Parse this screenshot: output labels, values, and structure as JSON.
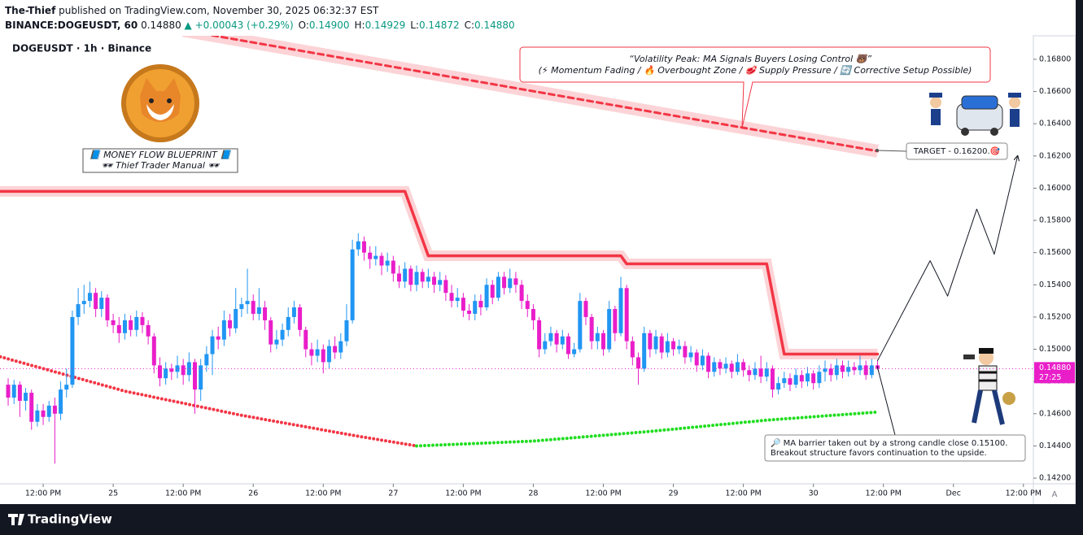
{
  "header": {
    "author": "The-Thief",
    "published": "published on TradingView.com, November 30, 2025 06:32:37 EST",
    "symbol": "BINANCE:DOGEUSDT, 60",
    "last": "0.14880",
    "change": "▲ +0.00043 (+0.29%)",
    "ohlc": [
      {
        "key": "O:",
        "val": "0.14900"
      },
      {
        "key": "H:",
        "val": "0.14929"
      },
      {
        "key": "L:",
        "val": "0.14872"
      },
      {
        "key": "C:",
        "val": "0.14880"
      }
    ]
  },
  "chart_data": {
    "type": "candlestick",
    "title": "DOGEUSDT · 1h · Binance",
    "up_color": "#2196f3",
    "down_color": "#e91ec9",
    "grid": false,
    "xlim": [
      -1.4,
      175.7
    ],
    "ylim": [
      0.14165,
      0.16946
    ],
    "xticks": [
      {
        "value": 6,
        "label": "12:00 PM"
      },
      {
        "value": 18,
        "label": "25"
      },
      {
        "value": 30,
        "label": "12:00 PM"
      },
      {
        "value": 42,
        "label": "26"
      },
      {
        "value": 54,
        "label": "12:00 PM"
      },
      {
        "value": 66,
        "label": "27"
      },
      {
        "value": 78,
        "label": "12:00 PM"
      },
      {
        "value": 90,
        "label": "28"
      },
      {
        "value": 102,
        "label": "12:00 PM"
      },
      {
        "value": 114,
        "label": "29"
      },
      {
        "value": 126,
        "label": "12:00 PM"
      },
      {
        "value": 138,
        "label": "30"
      },
      {
        "value": 150,
        "label": "12:00 PM"
      },
      {
        "value": 162,
        "label": "Dec"
      },
      {
        "value": 174,
        "label": "12:00 PM"
      }
    ],
    "yticks": [
      {
        "value": 0.142,
        "label": "0.14200"
      },
      {
        "value": 0.144,
        "label": "0.14400"
      },
      {
        "value": 0.146,
        "label": "0.14600"
      },
      {
        "value": 0.148,
        "label": "0.14800"
      },
      {
        "value": 0.15,
        "label": "0.15000"
      },
      {
        "value": 0.152,
        "label": "0.15200"
      },
      {
        "value": 0.154,
        "label": "0.15400"
      },
      {
        "value": 0.156,
        "label": "0.15600"
      },
      {
        "value": 0.158,
        "label": "0.15800"
      },
      {
        "value": 0.16,
        "label": "0.16000"
      },
      {
        "value": 0.162,
        "label": "0.16200"
      },
      {
        "value": 0.164,
        "label": "0.16400"
      },
      {
        "value": 0.166,
        "label": "0.16600"
      },
      {
        "value": 0.168,
        "label": "0.16800"
      }
    ],
    "ohlc": [
      [
        0.1478,
        0.1482,
        0.1465,
        0.147
      ],
      [
        0.147,
        0.1481,
        0.1466,
        0.1478
      ],
      [
        0.1478,
        0.148,
        0.1458,
        0.1468
      ],
      [
        0.1468,
        0.1476,
        0.1462,
        0.1473
      ],
      [
        0.1473,
        0.1475,
        0.145,
        0.1455
      ],
      [
        0.1455,
        0.1466,
        0.1452,
        0.1462
      ],
      [
        0.1462,
        0.1466,
        0.1453,
        0.1458
      ],
      [
        0.1458,
        0.1468,
        0.1455,
        0.1465
      ],
      [
        0.1465,
        0.147,
        0.1429,
        0.146
      ],
      [
        0.146,
        0.148,
        0.1456,
        0.1475
      ],
      [
        0.1475,
        0.1488,
        0.147,
        0.1478
      ],
      [
        0.1478,
        0.1524,
        0.1476,
        0.152
      ],
      [
        0.152,
        0.1538,
        0.1515,
        0.1528
      ],
      [
        0.1528,
        0.154,
        0.1522,
        0.153
      ],
      [
        0.153,
        0.1542,
        0.1526,
        0.1535
      ],
      [
        0.1535,
        0.1538,
        0.152,
        0.1525
      ],
      [
        0.1525,
        0.1536,
        0.152,
        0.1532
      ],
      [
        0.1532,
        0.1534,
        0.1514,
        0.1518
      ],
      [
        0.1518,
        0.1522,
        0.151,
        0.1515
      ],
      [
        0.1515,
        0.152,
        0.1504,
        0.151
      ],
      [
        0.151,
        0.1522,
        0.1506,
        0.1518
      ],
      [
        0.1518,
        0.1521,
        0.1508,
        0.1512
      ],
      [
        0.1512,
        0.1524,
        0.1508,
        0.152
      ],
      [
        0.152,
        0.1523,
        0.151,
        0.1515
      ],
      [
        0.1515,
        0.1518,
        0.1503,
        0.1508
      ],
      [
        0.1508,
        0.151,
        0.1485,
        0.149
      ],
      [
        0.149,
        0.1495,
        0.1477,
        0.1482
      ],
      [
        0.1482,
        0.1492,
        0.1478,
        0.1488
      ],
      [
        0.1488,
        0.1491,
        0.1481,
        0.1486
      ],
      [
        0.1486,
        0.1496,
        0.1482,
        0.149
      ],
      [
        0.149,
        0.1494,
        0.1478,
        0.1484
      ],
      [
        0.1484,
        0.1498,
        0.148,
        0.1492
      ],
      [
        0.1492,
        0.1494,
        0.146,
        0.1475
      ],
      [
        0.1475,
        0.1494,
        0.1468,
        0.149
      ],
      [
        0.149,
        0.1502,
        0.1486,
        0.1497
      ],
      [
        0.1497,
        0.1512,
        0.1484,
        0.1508
      ],
      [
        0.1508,
        0.1514,
        0.15,
        0.1506
      ],
      [
        0.1506,
        0.1524,
        0.1502,
        0.1518
      ],
      [
        0.1518,
        0.1522,
        0.1508,
        0.1513
      ],
      [
        0.1513,
        0.1538,
        0.151,
        0.1525
      ],
      [
        0.1525,
        0.1532,
        0.152,
        0.1528
      ],
      [
        0.1528,
        0.155,
        0.1522,
        0.153
      ],
      [
        0.153,
        0.1534,
        0.1518,
        0.1522
      ],
      [
        0.1522,
        0.1538,
        0.1518,
        0.1526
      ],
      [
        0.1526,
        0.153,
        0.1512,
        0.1518
      ],
      [
        0.1518,
        0.152,
        0.1498,
        0.1503
      ],
      [
        0.1503,
        0.1512,
        0.15,
        0.1506
      ],
      [
        0.1506,
        0.1516,
        0.1502,
        0.1512
      ],
      [
        0.1512,
        0.1526,
        0.1508,
        0.152
      ],
      [
        0.152,
        0.153,
        0.1516,
        0.1526
      ],
      [
        0.1526,
        0.1528,
        0.1508,
        0.1512
      ],
      [
        0.1512,
        0.1514,
        0.1495,
        0.15
      ],
      [
        0.15,
        0.1504,
        0.149,
        0.1496
      ],
      [
        0.1496,
        0.1506,
        0.1492,
        0.15
      ],
      [
        0.15,
        0.1503,
        0.1485,
        0.1492
      ],
      [
        0.1492,
        0.1506,
        0.1488,
        0.1502
      ],
      [
        0.1502,
        0.1508,
        0.1494,
        0.1498
      ],
      [
        0.1498,
        0.151,
        0.1494,
        0.1505
      ],
      [
        0.1505,
        0.1528,
        0.1502,
        0.1518
      ],
      [
        0.1518,
        0.1568,
        0.1516,
        0.1562
      ],
      [
        0.1562,
        0.1572,
        0.1558,
        0.1567
      ],
      [
        0.1567,
        0.157,
        0.1555,
        0.156
      ],
      [
        0.156,
        0.1564,
        0.155,
        0.1556
      ],
      [
        0.1556,
        0.1564,
        0.1552,
        0.1558
      ],
      [
        0.1558,
        0.156,
        0.1546,
        0.1552
      ],
      [
        0.1552,
        0.156,
        0.1548,
        0.1555
      ],
      [
        0.1555,
        0.1558,
        0.1542,
        0.1547
      ],
      [
        0.1547,
        0.1552,
        0.1538,
        0.1542
      ],
      [
        0.1542,
        0.1554,
        0.1538,
        0.155
      ],
      [
        0.155,
        0.1552,
        0.1536,
        0.154
      ],
      [
        0.154,
        0.1552,
        0.1536,
        0.1548
      ],
      [
        0.1548,
        0.155,
        0.1538,
        0.1542
      ],
      [
        0.1542,
        0.155,
        0.1538,
        0.1545
      ],
      [
        0.1545,
        0.1548,
        0.1535,
        0.154
      ],
      [
        0.154,
        0.1548,
        0.1536,
        0.1543
      ],
      [
        0.1543,
        0.1546,
        0.153,
        0.1535
      ],
      [
        0.1535,
        0.154,
        0.1526,
        0.153
      ],
      [
        0.153,
        0.1538,
        0.1526,
        0.1532
      ],
      [
        0.1532,
        0.1535,
        0.152,
        0.1524
      ],
      [
        0.1524,
        0.1528,
        0.1518,
        0.1522
      ],
      [
        0.1522,
        0.1534,
        0.1518,
        0.153
      ],
      [
        0.153,
        0.1534,
        0.1521,
        0.1526
      ],
      [
        0.1526,
        0.1544,
        0.1524,
        0.154
      ],
      [
        0.154,
        0.1543,
        0.1528,
        0.1532
      ],
      [
        0.1532,
        0.1548,
        0.153,
        0.1545
      ],
      [
        0.1545,
        0.1548,
        0.1534,
        0.1538
      ],
      [
        0.1538,
        0.155,
        0.1535,
        0.1544
      ],
      [
        0.1544,
        0.1548,
        0.1535,
        0.154
      ],
      [
        0.154,
        0.1543,
        0.1525,
        0.153
      ],
      [
        0.153,
        0.1534,
        0.152,
        0.1525
      ],
      [
        0.1525,
        0.1528,
        0.1512,
        0.1518
      ],
      [
        0.1518,
        0.152,
        0.1495,
        0.15
      ],
      [
        0.15,
        0.151,
        0.1497,
        0.1505
      ],
      [
        0.1505,
        0.1514,
        0.1502,
        0.151
      ],
      [
        0.151,
        0.1512,
        0.1498,
        0.1503
      ],
      [
        0.1503,
        0.1512,
        0.15,
        0.1508
      ],
      [
        0.1508,
        0.151,
        0.1494,
        0.1497
      ],
      [
        0.1497,
        0.1504,
        0.1495,
        0.15
      ],
      [
        0.15,
        0.1535,
        0.1498,
        0.153
      ],
      [
        0.153,
        0.1532,
        0.1515,
        0.152
      ],
      [
        0.152,
        0.1522,
        0.15,
        0.1505
      ],
      [
        0.1505,
        0.1514,
        0.15,
        0.151
      ],
      [
        0.151,
        0.1512,
        0.1496,
        0.15
      ],
      [
        0.15,
        0.153,
        0.1498,
        0.1525
      ],
      [
        0.1525,
        0.1527,
        0.1505,
        0.151
      ],
      [
        0.151,
        0.1545,
        0.1508,
        0.1538
      ],
      [
        0.1538,
        0.154,
        0.15,
        0.1505
      ],
      [
        0.1505,
        0.1508,
        0.149,
        0.1495
      ],
      [
        0.1495,
        0.1498,
        0.1478,
        0.1488
      ],
      [
        0.1488,
        0.1514,
        0.1486,
        0.151
      ],
      [
        0.151,
        0.1512,
        0.1495,
        0.15
      ],
      [
        0.15,
        0.1512,
        0.1497,
        0.1508
      ],
      [
        0.1508,
        0.151,
        0.1494,
        0.1498
      ],
      [
        0.1498,
        0.151,
        0.1495,
        0.1505
      ],
      [
        0.1505,
        0.1507,
        0.1496,
        0.15
      ],
      [
        0.15,
        0.1506,
        0.1497,
        0.1502
      ],
      [
        0.1502,
        0.1505,
        0.1491,
        0.1495
      ],
      [
        0.1495,
        0.1502,
        0.1492,
        0.1498
      ],
      [
        0.1498,
        0.15,
        0.1486,
        0.149
      ],
      [
        0.149,
        0.15,
        0.1487,
        0.1496
      ],
      [
        0.1496,
        0.1498,
        0.1482,
        0.1486
      ],
      [
        0.1486,
        0.1495,
        0.1483,
        0.1492
      ],
      [
        0.1492,
        0.1494,
        0.1484,
        0.1488
      ],
      [
        0.1488,
        0.1495,
        0.1485,
        0.1491
      ],
      [
        0.1491,
        0.1493,
        0.1482,
        0.1486
      ],
      [
        0.1486,
        0.1497,
        0.1484,
        0.1492
      ],
      [
        0.1492,
        0.1494,
        0.1483,
        0.1487
      ],
      [
        0.1487,
        0.149,
        0.148,
        0.1484
      ],
      [
        0.1484,
        0.1492,
        0.1481,
        0.1488
      ],
      [
        0.1488,
        0.1496,
        0.1479,
        0.1483
      ],
      [
        0.1483,
        0.1492,
        0.148,
        0.1488
      ],
      [
        0.1488,
        0.149,
        0.147,
        0.1475
      ],
      [
        0.1475,
        0.1483,
        0.1472,
        0.1479
      ],
      [
        0.1479,
        0.1486,
        0.1476,
        0.1482
      ],
      [
        0.1482,
        0.1485,
        0.1474,
        0.1478
      ],
      [
        0.1478,
        0.1488,
        0.1476,
        0.1484
      ],
      [
        0.1484,
        0.1487,
        0.1476,
        0.148
      ],
      [
        0.148,
        0.1489,
        0.1477,
        0.1485
      ],
      [
        0.1485,
        0.1487,
        0.1475,
        0.1479
      ],
      [
        0.1479,
        0.149,
        0.1476,
        0.1486
      ],
      [
        0.1486,
        0.1493,
        0.148,
        0.1488
      ],
      [
        0.1488,
        0.1491,
        0.148,
        0.1484
      ],
      [
        0.1484,
        0.1494,
        0.1481,
        0.149
      ],
      [
        0.149,
        0.1493,
        0.1482,
        0.1486
      ],
      [
        0.1486,
        0.1493,
        0.1483,
        0.1489
      ],
      [
        0.1489,
        0.1492,
        0.1484,
        0.1487
      ],
      [
        0.1487,
        0.1496,
        0.1484,
        0.149
      ],
      [
        0.149,
        0.1493,
        0.1481,
        0.1484
      ],
      [
        0.1484,
        0.1494,
        0.1482,
        0.149
      ],
      [
        0.149,
        0.14929,
        0.14872,
        0.1488
      ]
    ],
    "overlays": [
      {
        "style": "dashed-band",
        "color": "#f23645",
        "x": [
          30,
          149
        ],
        "values": [
          0.1698,
          0.1623
        ]
      },
      {
        "style": "band",
        "color": "#f23645",
        "x": [
          -2,
          68,
          72,
          105,
          106,
          130,
          133,
          149
        ],
        "values": [
          0.1598,
          0.1598,
          0.1558,
          0.1558,
          0.1553,
          0.1553,
          0.1497,
          0.1497
        ]
      },
      {
        "style": "dots",
        "color": "#f23645",
        "x": [
          -2,
          20,
          40,
          60,
          70
        ],
        "values": [
          0.1496,
          0.1474,
          0.1459,
          0.1446,
          0.144
        ]
      },
      {
        "style": "dots",
        "color": "#22dd22",
        "x": [
          70,
          90,
          110,
          130,
          149
        ],
        "values": [
          0.144,
          0.1443,
          0.1449,
          0.1456,
          0.1461
        ]
      },
      {
        "style": "path",
        "color": "#131722",
        "x": [
          149,
          158,
          161,
          166,
          169,
          173
        ],
        "values": [
          0.1493,
          0.1555,
          0.1533,
          0.1587,
          0.1559,
          0.162
        ]
      }
    ],
    "price_label": "0.14880",
    "countdown": "27:25",
    "annotations": {
      "quote_title": "“Volatility Peak: MA Signals Buyers Losing Control 🐻”",
      "quote_sub": "(⚡ Momentum Fading / 🔥 Overbought Zone / 🥩 Supply Pressure / 🔄 Corrective Setup Possible)",
      "target": "TARGET - 0.16200.🎯",
      "note_1": "🔎 MA barrier taken out by a strong candle close 0.15100.",
      "note_2": "Breakout structure favors continuation to the upside.",
      "book_1": "📘 MONEY FLOW BLUEPRINT 📘",
      "book_2": "🕶 Thief Trader Manual 🕶"
    },
    "scale_mode": "A",
    "brand": "TradingView"
  }
}
